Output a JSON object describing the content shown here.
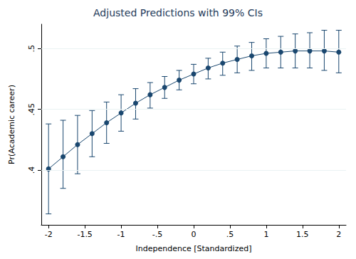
{
  "chart_data": {
    "type": "line",
    "title": "Adjusted Predictions with 99% CIs",
    "x_label": "Independence [Standardized]",
    "y_label": "Pr(Academic career)",
    "x": [
      -2,
      -1.8,
      -1.6,
      -1.4,
      -1.2,
      -1,
      -0.8,
      -0.6,
      -0.4,
      -0.2,
      0,
      0.2,
      0.4,
      0.6,
      0.8,
      1,
      1.2,
      1.4,
      1.6,
      1.8,
      2
    ],
    "values": [
      0.401,
      0.411,
      0.421,
      0.43,
      0.439,
      0.447,
      0.455,
      0.462,
      0.468,
      0.474,
      0.479,
      0.484,
      0.488,
      0.491,
      0.494,
      0.496,
      0.497,
      0.498,
      0.498,
      0.498,
      0.497
    ],
    "ci_lower": [
      0.364,
      0.385,
      0.397,
      0.411,
      0.422,
      0.432,
      0.442,
      0.451,
      0.459,
      0.466,
      0.471,
      0.475,
      0.478,
      0.48,
      0.482,
      0.484,
      0.484,
      0.484,
      0.484,
      0.482,
      0.48
    ],
    "ci_upper": [
      0.438,
      0.441,
      0.445,
      0.449,
      0.456,
      0.462,
      0.467,
      0.472,
      0.477,
      0.482,
      0.487,
      0.492,
      0.497,
      0.502,
      0.505,
      0.508,
      0.51,
      0.512,
      0.513,
      0.515,
      0.515
    ],
    "color": "#1a476f",
    "marker": "circle",
    "xlim": [
      -2.1,
      2.1
    ],
    "xticks": [
      -2,
      {
        "value": -1.5,
        "label": "-1.5"
      },
      -1,
      {
        "value": -0.5,
        "label": "-.5"
      },
      0,
      {
        "value": 0.5,
        "label": ".5"
      },
      1,
      1.5,
      2
    ],
    "ylim": [
      0.355,
      0.52
    ],
    "yticks": [
      {
        "value": 0.4,
        "label": ".4"
      },
      {
        "value": 0.45,
        "label": ".45"
      },
      {
        "value": 0.5,
        "label": ".5"
      }
    ],
    "grid": true
  }
}
